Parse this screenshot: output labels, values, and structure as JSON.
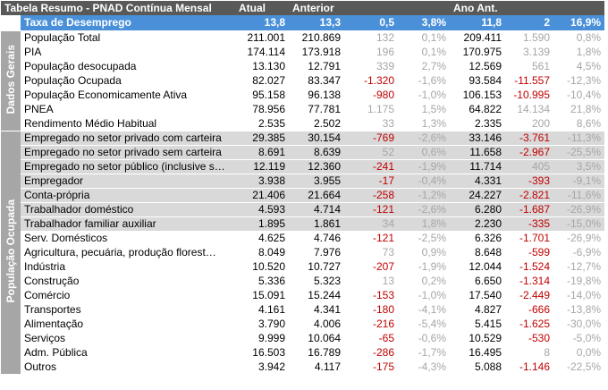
{
  "header": {
    "title": "Tabela Resumo - PNAD Contínua Mensal",
    "col_atual": "Atual",
    "col_anterior": "Anterior",
    "col_ano_ant": "Ano Ant."
  },
  "rate_row": {
    "label": "Taxa de Desemprego",
    "atual": "13,8",
    "anterior": "13,3",
    "var_abs": "0,5",
    "var_pct": "3,8%",
    "ano_ant": "11,8",
    "ano_var_abs": "2",
    "ano_var_pct": "16,9%"
  },
  "groups": {
    "dados_gerais": "Dados Gerais",
    "populacao_ocupada": "População Ocupada"
  },
  "rows": [
    {
      "label": "População Total",
      "atual": "211.001",
      "anterior": "210.869",
      "v1": "132",
      "p1": "0,1%",
      "ano": "209.411",
      "v2": "1.590",
      "p2": "0,8%"
    },
    {
      "label": "PIA",
      "atual": "174.114",
      "anterior": "173.918",
      "v1": "196",
      "p1": "0,1%",
      "ano": "170.975",
      "v2": "3.139",
      "p2": "1,8%"
    },
    {
      "label": "População desocupada",
      "atual": "13.130",
      "anterior": "12.791",
      "v1": "339",
      "p1": "2,7%",
      "ano": "12.569",
      "v2": "561",
      "p2": "4,5%"
    },
    {
      "label": "População Ocupada",
      "atual": "82.027",
      "anterior": "83.347",
      "v1": "-1.320",
      "p1": "-1,6%",
      "ano": "93.584",
      "v2": "-11.557",
      "p2": "-12,3%"
    },
    {
      "label": "População Economicamente Ativa",
      "atual": "95.158",
      "anterior": "96.138",
      "v1": "-980",
      "p1": "-1,0%",
      "ano": "106.153",
      "v2": "-10.995",
      "p2": "-10,4%"
    },
    {
      "label": "PNEA",
      "atual": "78.956",
      "anterior": "77.781",
      "v1": "1.175",
      "p1": "1,5%",
      "ano": "64.822",
      "v2": "14.134",
      "p2": "21,8%"
    },
    {
      "label": "Rendimento Médio Habitual",
      "atual": "2.535",
      "anterior": "2.502",
      "v1": "33",
      "p1": "1,3%",
      "ano": "2.335",
      "v2": "200",
      "p2": "8,6%"
    },
    {
      "label": "Empregado no setor privado com carteira",
      "atual": "29.385",
      "anterior": "30.154",
      "v1": "-769",
      "p1": "-2,6%",
      "ano": "33.146",
      "v2": "-3.761",
      "p2": "-11,3%"
    },
    {
      "label": "Empregado no setor privado sem carteira",
      "atual": "8.691",
      "anterior": "8.639",
      "v1": "52",
      "p1": "0,6%",
      "ano": "11.658",
      "v2": "-2.967",
      "p2": "-25,5%"
    },
    {
      "label": "Empregado no setor público (inclusive s…",
      "atual": "12.119",
      "anterior": "12.360",
      "v1": "-241",
      "p1": "-1,9%",
      "ano": "11.714",
      "v2": "405",
      "p2": "3,5%"
    },
    {
      "label": "Empregador",
      "atual": "3.938",
      "anterior": "3.955",
      "v1": "-17",
      "p1": "-0,4%",
      "ano": "4.331",
      "v2": "-393",
      "p2": "-9,1%"
    },
    {
      "label": "Conta-própria",
      "atual": "21.406",
      "anterior": "21.664",
      "v1": "-258",
      "p1": "-1,2%",
      "ano": "24.227",
      "v2": "-2.821",
      "p2": "-11,6%"
    },
    {
      "label": "Trabalhador doméstico",
      "atual": "4.593",
      "anterior": "4.714",
      "v1": "-121",
      "p1": "-2,6%",
      "ano": "6.280",
      "v2": "-1.687",
      "p2": "-26,9%"
    },
    {
      "label": "Trabalhador familiar auxiliar",
      "atual": "1.895",
      "anterior": "1.861",
      "v1": "34",
      "p1": "1,8%",
      "ano": "2.230",
      "v2": "-335",
      "p2": "-15,0%"
    },
    {
      "label": "Serv. Domésticos",
      "atual": "4.625",
      "anterior": "4.746",
      "v1": "-121",
      "p1": "-2,5%",
      "ano": "6.326",
      "v2": "-1.701",
      "p2": "-26,9%"
    },
    {
      "label": "Agricultura, pecuária, produção florest…",
      "atual": "8.049",
      "anterior": "7.976",
      "v1": "73",
      "p1": "0,9%",
      "ano": "8.648",
      "v2": "-599",
      "p2": "-6,9%"
    },
    {
      "label": "Indústria",
      "atual": "10.520",
      "anterior": "10.727",
      "v1": "-207",
      "p1": "-1,9%",
      "ano": "12.044",
      "v2": "-1.524",
      "p2": "-12,7%"
    },
    {
      "label": "Construção",
      "atual": "5.336",
      "anterior": "5.323",
      "v1": "13",
      "p1": "0,2%",
      "ano": "6.650",
      "v2": "-1.314",
      "p2": "-19,8%"
    },
    {
      "label": "Comércio",
      "atual": "15.091",
      "anterior": "15.244",
      "v1": "-153",
      "p1": "-1,0%",
      "ano": "17.540",
      "v2": "-2.449",
      "p2": "-14,0%"
    },
    {
      "label": "Transportes",
      "atual": "4.161",
      "anterior": "4.341",
      "v1": "-180",
      "p1": "-4,1%",
      "ano": "4.827",
      "v2": "-666",
      "p2": "-13,8%"
    },
    {
      "label": "Alimentação",
      "atual": "3.790",
      "anterior": "4.006",
      "v1": "-216",
      "p1": "-5,4%",
      "ano": "5.415",
      "v2": "-1.625",
      "p2": "-30,0%"
    },
    {
      "label": "Serviços",
      "atual": "9.999",
      "anterior": "10.064",
      "v1": "-65",
      "p1": "-0,6%",
      "ano": "10.529",
      "v2": "-530",
      "p2": "-5,0%"
    },
    {
      "label": "Adm. Pública",
      "atual": "16.503",
      "anterior": "16.789",
      "v1": "-286",
      "p1": "-1,7%",
      "ano": "16.495",
      "v2": "8",
      "p2": "0,0%"
    },
    {
      "label": "Outros",
      "atual": "3.942",
      "anterior": "4.117",
      "v1": "-175",
      "p1": "-4,3%",
      "ano": "5.088",
      "v2": "-1.146",
      "p2": "-22,5%"
    }
  ],
  "colors": {
    "header_bg": "#595959",
    "rate_row_bg": "#4a90d9",
    "group_bg": "#a6a6a6",
    "grey_row_bg": "#d9d9d9",
    "negative": "#c00000",
    "positive": "#a6a6a6"
  }
}
